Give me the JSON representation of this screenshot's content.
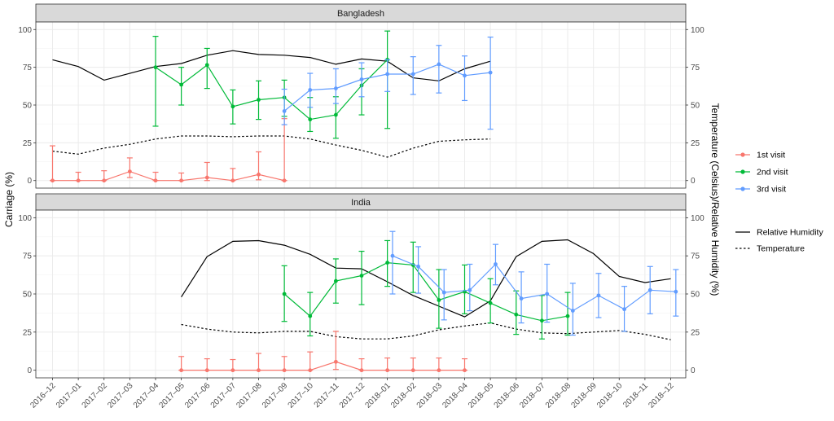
{
  "chart_data": {
    "type": "line",
    "ylabel_left": "Carriage (%)",
    "ylabel_right": "Temperature (Celsius)/Relative Humidity (%)",
    "x_categories": [
      "2016–12",
      "2017–01",
      "2017–02",
      "2017–03",
      "2017–04",
      "2017–05",
      "2017–06",
      "2017–07",
      "2017–08",
      "2017–09",
      "2017–10",
      "2017–11",
      "2017–12",
      "2018–01",
      "2018–02",
      "2018–03",
      "2018–04",
      "2018–05",
      "2018–06",
      "2018–07",
      "2018–08",
      "2018–09",
      "2018–10",
      "2018–11",
      "2018–12"
    ],
    "y_ticks": [
      "0",
      "25",
      "50",
      "75",
      "100"
    ],
    "ylim": [
      -5,
      105
    ],
    "grid": true,
    "legend_position": "right",
    "legend_visit": [
      {
        "label": "1st visit",
        "color": "#F8766D"
      },
      {
        "label": "2nd visit",
        "color": "#00BA38"
      },
      {
        "label": "3rd visit",
        "color": "#619CFF"
      }
    ],
    "legend_env": [
      {
        "label": "Relative Humidity",
        "dash": "solid"
      },
      {
        "label": "Temperature",
        "dash": "dotted"
      }
    ],
    "panels": [
      {
        "title": "Bangladesh",
        "humidity": {
          "x": [
            0,
            1,
            2,
            3,
            4,
            5,
            6,
            7,
            8,
            9,
            10,
            11,
            12,
            13,
            14,
            15,
            16,
            17
          ],
          "y": [
            80,
            75.5,
            66.5,
            71,
            75.5,
            77.5,
            83,
            86,
            83.5,
            83,
            81.5,
            77,
            80.5,
            79,
            68,
            66,
            74,
            79
          ]
        },
        "temperature": {
          "x": [
            0,
            1,
            2,
            3,
            4,
            5,
            6,
            7,
            8,
            9,
            10,
            11,
            12,
            13,
            14,
            15,
            16,
            17
          ],
          "y": [
            19.5,
            17.5,
            21.5,
            24,
            27.5,
            29.5,
            29.5,
            29,
            29.5,
            29.5,
            27.5,
            23.5,
            20,
            15.5,
            21.5,
            26,
            27,
            27.5
          ]
        },
        "visits": [
          {
            "name": "1st visit",
            "color": "#F8766D",
            "x": [
              0,
              1,
              2,
              3,
              4,
              5,
              6,
              7,
              8,
              9
            ],
            "y": [
              0,
              0,
              0,
              6,
              0,
              0,
              2,
              0,
              4,
              0
            ],
            "lo": [
              0,
              0,
              0,
              2,
              0,
              0,
              0,
              0,
              0.5,
              0
            ],
            "hi": [
              23,
              5.5,
              6.5,
              15,
              5.5,
              5,
              12,
              8,
              19,
              41
            ]
          },
          {
            "name": "2nd visit",
            "color": "#00BA38",
            "x": [
              4,
              5,
              6,
              7,
              8,
              9,
              10,
              11,
              12,
              13
            ],
            "y": [
              75,
              63.5,
              76.5,
              49,
              53.5,
              55,
              40.5,
              43.5,
              63,
              80
            ],
            "lo": [
              36,
              50,
              61,
              37.5,
              40.5,
              42.5,
              32.5,
              28,
              43.5,
              34.5
            ],
            "hi": [
              95.5,
              75,
              87.5,
              60,
              66,
              66.5,
              55,
              55.5,
              74,
              99
            ]
          },
          {
            "name": "3rd visit",
            "color": "#619CFF",
            "x": [
              9,
              10,
              11,
              12,
              13,
              14,
              15,
              16,
              17
            ],
            "y": [
              46,
              60,
              61,
              67,
              70.5,
              70.5,
              77,
              69.5,
              71.5
            ],
            "lo": [
              37,
              48.5,
              51,
              55.5,
              59,
              57,
              58,
              53,
              34
            ],
            "hi": [
              60.5,
              71,
              74,
              78,
              80,
              82,
              89.5,
              82.5,
              95
            ]
          }
        ]
      },
      {
        "title": "India",
        "humidity": {
          "x": [
            5,
            6,
            7,
            8,
            9,
            10,
            11,
            12,
            13,
            14,
            15,
            16,
            17,
            18,
            19,
            20,
            21,
            22,
            23,
            24
          ],
          "y": [
            48,
            74.5,
            84.5,
            85,
            82,
            76,
            67,
            66.5,
            58,
            49,
            42,
            35,
            45.5,
            74.5,
            84.5,
            85.5,
            76.5,
            61.5,
            57.5,
            60
          ]
        },
        "temperature": {
          "x": [
            5,
            6,
            7,
            8,
            9,
            10,
            11,
            12,
            13,
            14,
            15,
            16,
            17,
            18,
            19,
            20,
            21,
            22,
            23,
            24
          ],
          "y": [
            30,
            27,
            25,
            24.5,
            25.5,
            25.5,
            22,
            20.5,
            20.5,
            22.5,
            26.5,
            29,
            31,
            27,
            24.5,
            24,
            25,
            26,
            23.5,
            20
          ]
        },
        "visits": [
          {
            "name": "1st visit",
            "color": "#F8766D",
            "x": [
              5,
              6,
              7,
              8,
              9,
              10,
              11,
              12,
              13,
              14,
              15,
              16
            ],
            "y": [
              0,
              0,
              0,
              0,
              0,
              0,
              5.5,
              0,
              0,
              0,
              0,
              0
            ],
            "lo": [
              0,
              0,
              0,
              0,
              0,
              0,
              0.5,
              0,
              0,
              0,
              0,
              0
            ],
            "hi": [
              9,
              7.5,
              7,
              11,
              9,
              12,
              25.5,
              7.5,
              8,
              8,
              8,
              7.5
            ]
          },
          {
            "name": "2nd visit",
            "color": "#00BA38",
            "x": [
              9,
              10,
              11,
              12,
              13,
              14,
              15,
              16,
              17,
              18,
              19,
              20
            ],
            "y": [
              50,
              35.5,
              58.5,
              62,
              70.5,
              69,
              46,
              51.5,
              44,
              36.5,
              32.5,
              35.5
            ],
            "lo": [
              32,
              22.5,
              44,
              43,
              55,
              51,
              27.5,
              37,
              31,
              23.5,
              20.5,
              23
            ],
            "hi": [
              68.5,
              51,
              73,
              78,
              85,
              84,
              66,
              69,
              60,
              52,
              49,
              51
            ]
          },
          {
            "name": "3rd visit",
            "color": "#619CFF",
            "x": [
              13.2,
              14.2,
              15.2,
              16.2,
              17.2,
              18.2,
              19.2,
              20.2,
              21.2,
              22.2,
              23.2,
              24.2
            ],
            "y": [
              75,
              68,
              51,
              52.5,
              69.5,
              47,
              50,
              39,
              49,
              40,
              52.5,
              51.5
            ],
            "lo": [
              50,
              50.5,
              33,
              39,
              56,
              31,
              31.5,
              23,
              34.5,
              25.5,
              37,
              35.5
            ],
            "hi": [
              91,
              81,
              66,
              69.5,
              82.5,
              64.5,
              69.5,
              57,
              63.5,
              55,
              68,
              66
            ]
          }
        ]
      }
    ]
  }
}
